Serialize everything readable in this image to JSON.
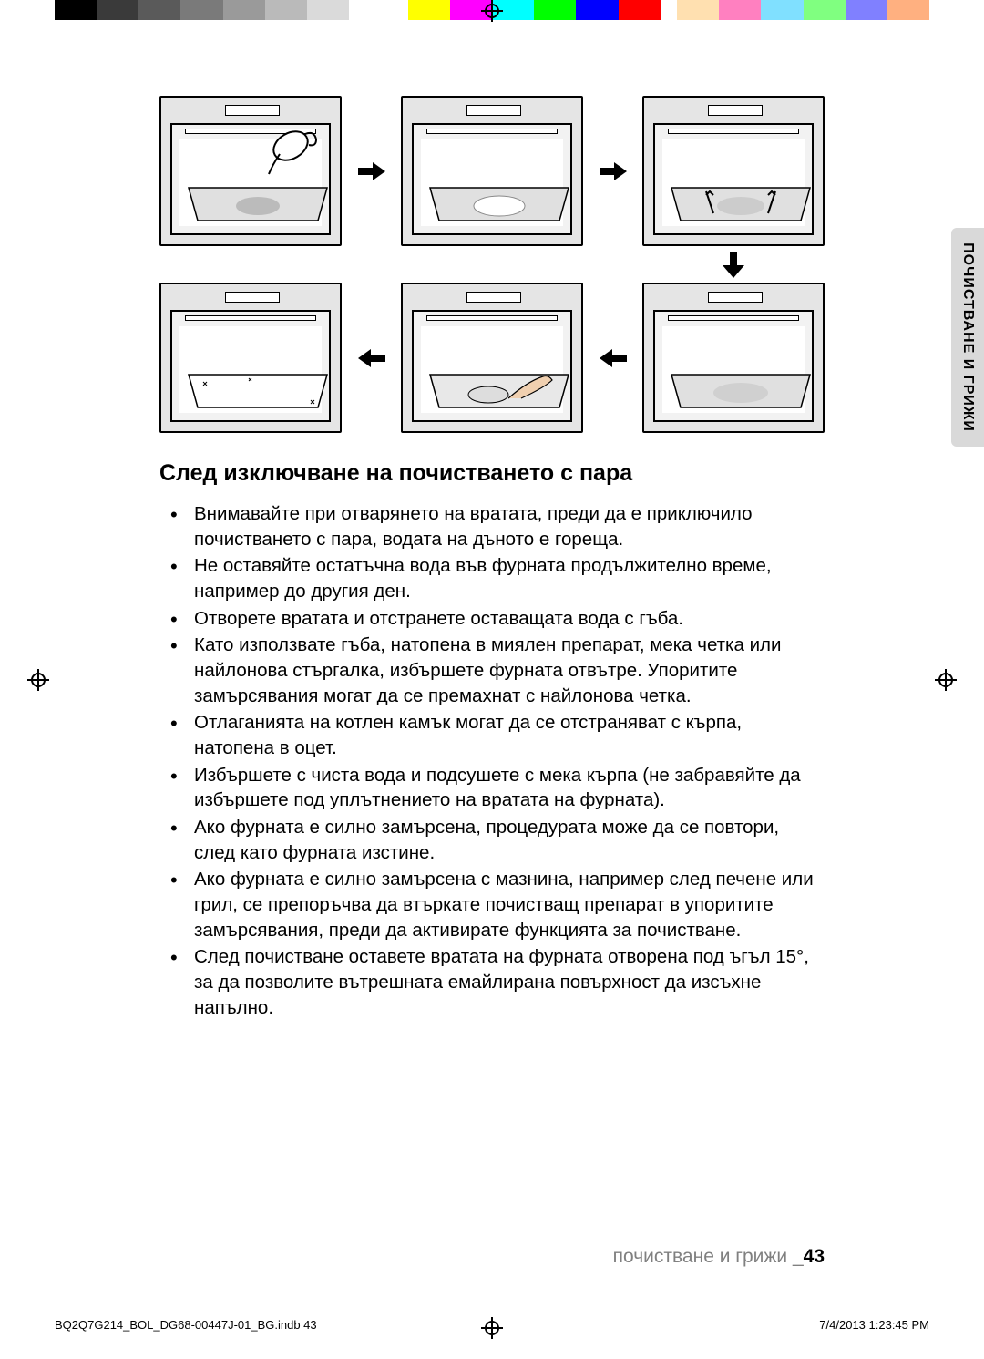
{
  "colorBar": [
    "#000000",
    "#3a3a3a",
    "#5a5a5a",
    "#7a7a7a",
    "#9a9a9a",
    "#bababa",
    "#dadada",
    "#ffffff",
    "",
    "#ffff00",
    "#ff00ff",
    "#00ffff",
    "#00ff00",
    "#0000ff",
    "#ff0000",
    "",
    "#ffe0b0",
    "#ff80c0",
    "#80e0ff",
    "#80ff80",
    "#8080ff",
    "#ffb080"
  ],
  "heading": "След изключване на почистването с пара",
  "bullets": [
    "Внимавайте при отварянето на вратата, преди да е приключило почистването с пара, водата на дъното е гореща.",
    "Не оставяйте остатъчна вода във фурната продължително време, например до другия ден.",
    "Отворете вратата и отстранете оставащата вода с гъба.",
    "Като използвате гъба, натопена в миялен препарат, мека четка или найлонова стъргалка, избършете фурната отвътре. Упоритите замърсявания могат да се премахнат с найлонова четка.",
    "Отлаганията на котлен камък могат да се отстраняват с кърпа, натопена в оцет.",
    "Избършете с чиста вода и подсушете с мека кърпа (не забравяйте да избършете под уплътнението на вратата на фурната).",
    "Ако фурната е силно замърсена, процедурата може да се повтори, след като фурната изстине.",
    "Ако фурната е силно замърсена с мазнина, например след печене или грил, се препоръчва да втъркате почистващ препарат в упоритите замърсявания, преди да активирате функцията за почистване.",
    "След почистване оставете вратата на фурната отворена под ъгъл 15°, за да позволите вътрешната емайлирана повърхност да изсъхне напълно."
  ],
  "sideTab": "ПОЧИСТВАНЕ И ГРИЖИ",
  "footerText": "почистване и грижи _",
  "pageNum": "43",
  "printFile": "BQ2Q7G214_BOL_DG68-00447J-01_BG.indb   43",
  "printDate": "7/4/2013   1:23:45 PM",
  "ovenDetails": {
    "1": "cup-pour-stain",
    "2": "stain",
    "3": "steam-up",
    "4": "clean-sparkle",
    "5": "hand-wipe",
    "6": "water"
  }
}
